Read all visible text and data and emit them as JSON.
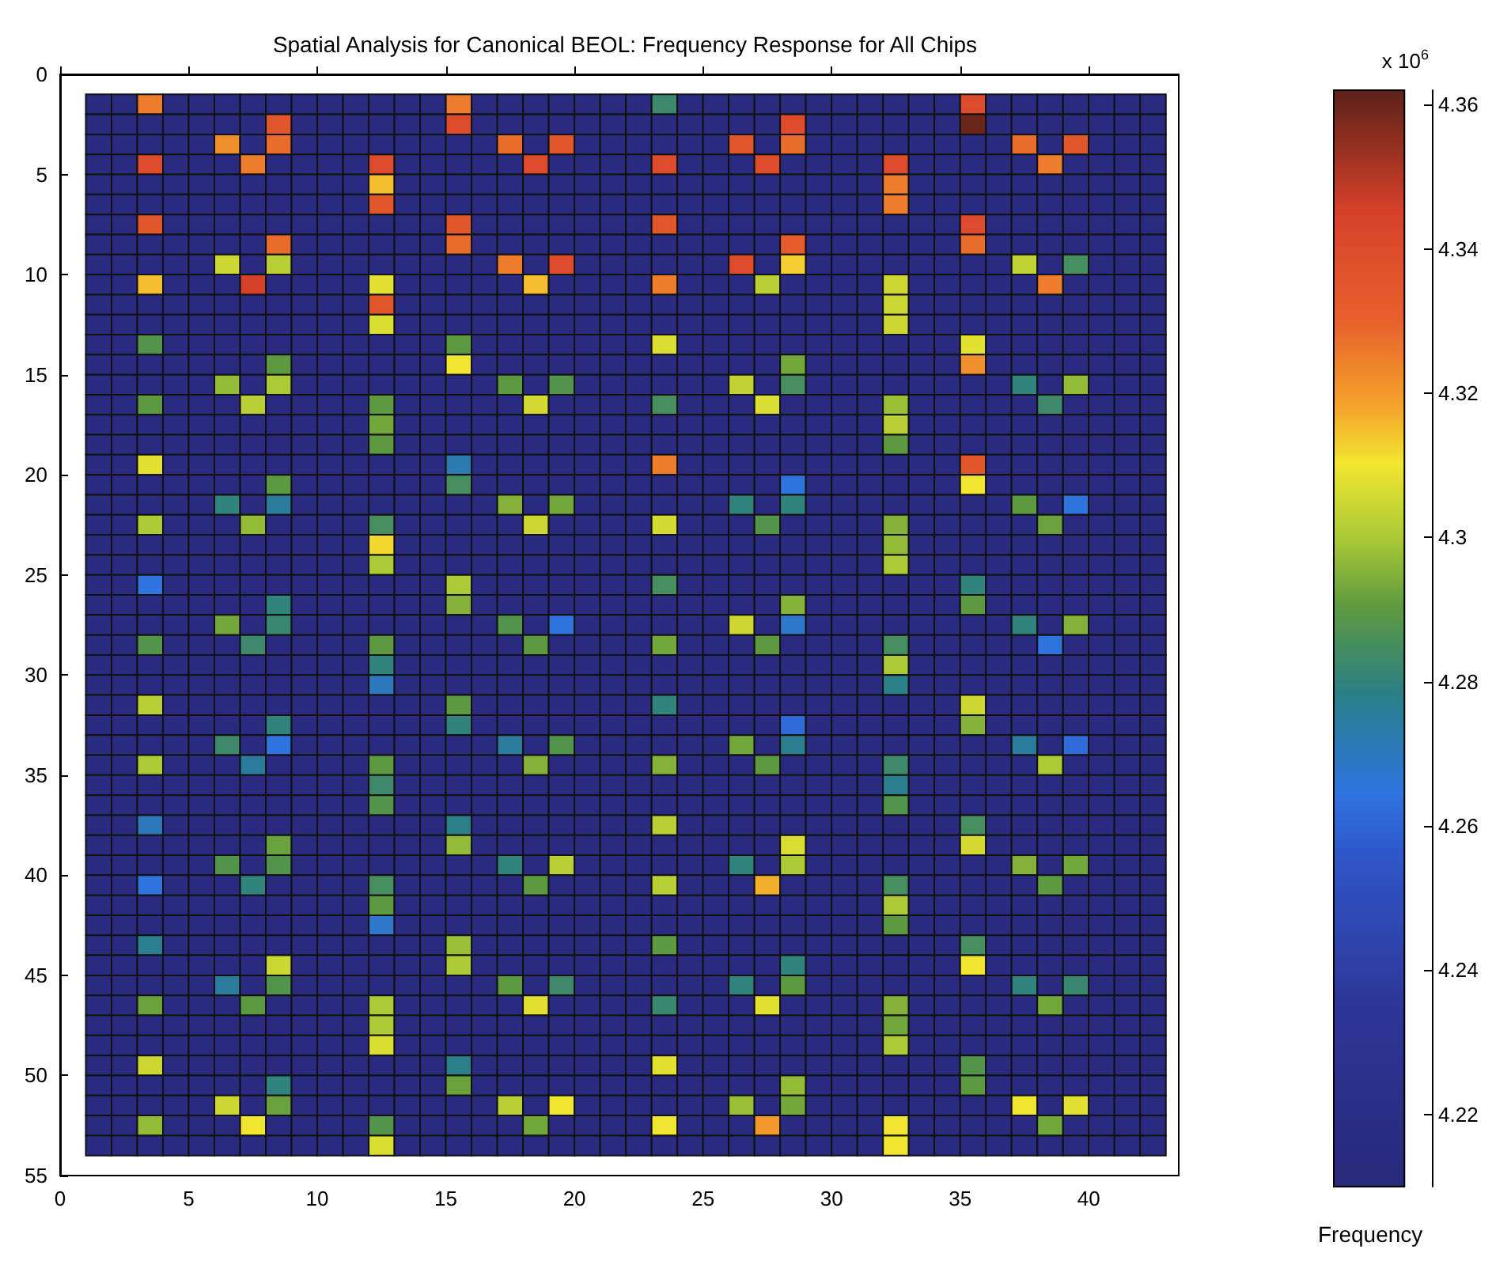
{
  "chart_data": {
    "type": "heatmap",
    "title": "Spatial Analysis for Canonical BEOL: Frequency Response for All Chips",
    "clabel": "Frequency",
    "annotations": [
      "x 10$^{6}$"
    ],
    "x": [
      1.5,
      2.5,
      3.5,
      4.5,
      5.5,
      6.5,
      7.5,
      8.5,
      9.5,
      10.5,
      11.5,
      12.5,
      13.5,
      14.5,
      15.5,
      16.5,
      17.5,
      18.5,
      19.5,
      20.5,
      21.5,
      22.5,
      23.5,
      24.5,
      25.5,
      26.5,
      27.5,
      28.5,
      29.5,
      30.5,
      31.5,
      32.5,
      33.5,
      34.5,
      35.5,
      36.5,
      37.5,
      38.5,
      39.5,
      40.5,
      41.5,
      42.5
    ],
    "y": [
      1.5,
      2.5,
      3.5,
      4.5,
      5.5,
      6.5,
      7.5,
      8.5,
      9.5,
      10.5,
      11.5,
      12.5,
      13.5,
      14.5,
      15.5,
      16.5,
      17.5,
      18.5,
      19.5,
      20.5,
      21.5,
      22.5,
      23.5,
      24.5,
      25.5,
      26.5,
      27.5,
      28.5,
      29.5,
      30.5,
      31.5,
      32.5,
      33.5,
      34.5,
      35.5,
      36.5,
      37.5,
      38.5,
      39.5,
      40.5,
      41.5,
      42.5,
      43.5,
      44.5,
      45.5,
      46.5,
      47.5,
      48.5,
      49.5,
      50.5,
      51.5,
      52.5,
      53.5
    ],
    "xlim": [
      0,
      43.5
    ],
    "xticks": [
      0,
      5,
      10,
      15,
      20,
      25,
      30,
      35,
      40
    ],
    "ylim": [
      55,
      0
    ],
    "yticks": [
      0,
      5,
      10,
      15,
      20,
      25,
      30,
      35,
      40,
      45,
      50,
      55
    ],
    "clim": [
      4.21,
      4.362
    ],
    "cticks": [
      4.22,
      4.24,
      4.26,
      4.28,
      4.3,
      4.32,
      4.34,
      4.36
    ],
    "cells": [
      [
        4.215,
        4.215,
        4.325,
        4.215,
        4.215,
        4.215,
        4.215,
        4.215,
        4.215,
        4.215,
        4.215,
        4.215,
        4.215,
        4.215,
        4.325,
        4.215,
        4.215,
        4.215,
        4.215,
        4.215,
        4.215,
        4.215,
        4.283,
        4.215,
        4.215,
        4.215,
        4.215,
        4.215,
        4.215,
        4.215,
        4.215,
        4.215,
        4.215,
        4.215,
        4.34,
        4.215,
        4.215,
        4.215,
        4.215,
        4.215,
        4.215,
        4.215
      ],
      [
        4.215,
        4.215,
        4.215,
        4.215,
        4.215,
        4.215,
        4.215,
        4.335,
        4.215,
        4.215,
        4.215,
        4.215,
        4.215,
        4.215,
        4.34,
        4.215,
        4.215,
        4.215,
        4.215,
        4.215,
        4.215,
        4.215,
        4.215,
        4.215,
        4.215,
        4.215,
        4.215,
        4.34,
        4.215,
        4.215,
        4.215,
        4.215,
        4.215,
        4.215,
        4.36,
        4.215,
        4.215,
        4.215,
        4.215,
        4.215,
        4.215,
        4.215
      ],
      [
        4.215,
        4.215,
        4.215,
        4.215,
        4.215,
        4.322,
        4.215,
        4.328,
        4.215,
        4.215,
        4.215,
        4.215,
        4.215,
        4.215,
        4.215,
        4.215,
        4.328,
        4.215,
        4.335,
        4.215,
        4.215,
        4.215,
        4.215,
        4.215,
        4.215,
        4.335,
        4.215,
        4.328,
        4.215,
        4.215,
        4.215,
        4.215,
        4.215,
        4.215,
        4.215,
        4.215,
        4.328,
        4.215,
        4.335,
        4.215,
        4.215,
        4.215
      ],
      [
        4.215,
        4.215,
        4.34,
        4.215,
        4.215,
        4.215,
        4.325,
        4.215,
        4.215,
        4.215,
        4.215,
        4.34,
        4.215,
        4.215,
        4.215,
        4.215,
        4.215,
        4.34,
        4.215,
        4.215,
        4.215,
        4.215,
        4.34,
        4.215,
        4.215,
        4.215,
        4.34,
        4.215,
        4.215,
        4.215,
        4.215,
        4.34,
        4.215,
        4.215,
        4.215,
        4.215,
        4.215,
        4.325,
        4.215,
        4.215,
        4.215,
        4.215
      ],
      [
        4.215,
        4.215,
        4.215,
        4.215,
        4.215,
        4.215,
        4.215,
        4.215,
        4.215,
        4.215,
        4.215,
        4.315,
        4.215,
        4.215,
        4.215,
        4.215,
        4.215,
        4.215,
        4.215,
        4.215,
        4.215,
        4.215,
        4.215,
        4.215,
        4.215,
        4.215,
        4.215,
        4.215,
        4.215,
        4.215,
        4.215,
        4.325,
        4.215,
        4.215,
        4.215,
        4.215,
        4.215,
        4.215,
        4.215,
        4.215,
        4.215,
        4.215
      ],
      [
        4.215,
        4.215,
        4.215,
        4.215,
        4.215,
        4.215,
        4.215,
        4.215,
        4.215,
        4.215,
        4.215,
        4.335,
        4.215,
        4.215,
        4.215,
        4.215,
        4.215,
        4.215,
        4.215,
        4.215,
        4.215,
        4.215,
        4.215,
        4.215,
        4.215,
        4.215,
        4.215,
        4.215,
        4.215,
        4.215,
        4.215,
        4.325,
        4.215,
        4.215,
        4.215,
        4.215,
        4.215,
        4.215,
        4.215,
        4.215,
        4.215,
        4.215
      ],
      [
        4.215,
        4.215,
        4.335,
        4.215,
        4.215,
        4.215,
        4.215,
        4.215,
        4.215,
        4.215,
        4.215,
        4.215,
        4.215,
        4.215,
        4.335,
        4.215,
        4.215,
        4.215,
        4.215,
        4.215,
        4.215,
        4.215,
        4.335,
        4.215,
        4.215,
        4.215,
        4.215,
        4.215,
        4.215,
        4.215,
        4.215,
        4.215,
        4.215,
        4.215,
        4.34,
        4.215,
        4.215,
        4.215,
        4.215,
        4.215,
        4.215,
        4.215
      ],
      [
        4.215,
        4.215,
        4.215,
        4.215,
        4.215,
        4.215,
        4.215,
        4.328,
        4.215,
        4.215,
        4.215,
        4.215,
        4.215,
        4.215,
        4.328,
        4.215,
        4.215,
        4.215,
        4.215,
        4.215,
        4.215,
        4.215,
        4.215,
        4.215,
        4.215,
        4.215,
        4.215,
        4.332,
        4.215,
        4.215,
        4.215,
        4.215,
        4.215,
        4.215,
        4.328,
        4.215,
        4.215,
        4.215,
        4.215,
        4.215,
        4.215,
        4.215
      ],
      [
        4.215,
        4.215,
        4.215,
        4.215,
        4.215,
        4.305,
        4.215,
        4.302,
        4.215,
        4.215,
        4.215,
        4.215,
        4.215,
        4.215,
        4.215,
        4.215,
        4.325,
        4.215,
        4.34,
        4.215,
        4.215,
        4.215,
        4.215,
        4.215,
        4.215,
        4.34,
        4.215,
        4.313,
        4.215,
        4.215,
        4.215,
        4.215,
        4.215,
        4.215,
        4.215,
        4.215,
        4.303,
        4.215,
        4.285,
        4.215,
        4.215,
        4.215
      ],
      [
        4.215,
        4.215,
        4.315,
        4.215,
        4.215,
        4.215,
        4.345,
        4.215,
        4.215,
        4.215,
        4.215,
        4.308,
        4.215,
        4.215,
        4.215,
        4.215,
        4.215,
        4.315,
        4.215,
        4.215,
        4.215,
        4.215,
        4.325,
        4.215,
        4.215,
        4.215,
        4.302,
        4.215,
        4.215,
        4.215,
        4.215,
        4.305,
        4.215,
        4.215,
        4.215,
        4.215,
        4.215,
        4.325,
        4.215,
        4.215,
        4.215,
        4.215
      ],
      [
        4.215,
        4.215,
        4.215,
        4.215,
        4.215,
        4.215,
        4.215,
        4.215,
        4.215,
        4.215,
        4.215,
        4.335,
        4.215,
        4.215,
        4.215,
        4.215,
        4.215,
        4.215,
        4.215,
        4.215,
        4.215,
        4.215,
        4.215,
        4.215,
        4.215,
        4.215,
        4.215,
        4.215,
        4.215,
        4.215,
        4.215,
        4.305,
        4.215,
        4.215,
        4.215,
        4.215,
        4.215,
        4.215,
        4.215,
        4.215,
        4.215,
        4.215
      ],
      [
        4.215,
        4.215,
        4.215,
        4.215,
        4.215,
        4.215,
        4.215,
        4.215,
        4.215,
        4.215,
        4.215,
        4.307,
        4.215,
        4.215,
        4.215,
        4.215,
        4.215,
        4.215,
        4.215,
        4.215,
        4.215,
        4.215,
        4.215,
        4.215,
        4.215,
        4.215,
        4.215,
        4.215,
        4.215,
        4.215,
        4.215,
        4.305,
        4.215,
        4.215,
        4.215,
        4.215,
        4.215,
        4.215,
        4.215,
        4.215,
        4.215,
        4.215
      ],
      [
        4.215,
        4.215,
        4.288,
        4.215,
        4.215,
        4.215,
        4.215,
        4.215,
        4.215,
        4.215,
        4.215,
        4.215,
        4.215,
        4.215,
        4.29,
        4.215,
        4.215,
        4.215,
        4.215,
        4.215,
        4.215,
        4.215,
        4.307,
        4.215,
        4.215,
        4.215,
        4.215,
        4.215,
        4.215,
        4.215,
        4.215,
        4.215,
        4.215,
        4.215,
        4.308,
        4.215,
        4.215,
        4.215,
        4.215,
        4.215,
        4.215,
        4.215
      ],
      [
        4.215,
        4.215,
        4.215,
        4.215,
        4.215,
        4.215,
        4.215,
        4.29,
        4.215,
        4.215,
        4.215,
        4.215,
        4.215,
        4.215,
        4.31,
        4.215,
        4.215,
        4.215,
        4.215,
        4.215,
        4.215,
        4.215,
        4.215,
        4.215,
        4.215,
        4.215,
        4.215,
        4.293,
        4.215,
        4.215,
        4.215,
        4.215,
        4.215,
        4.215,
        4.322,
        4.215,
        4.215,
        4.215,
        4.215,
        4.215,
        4.215,
        4.215
      ],
      [
        4.215,
        4.215,
        4.215,
        4.215,
        4.215,
        4.297,
        4.215,
        4.3,
        4.215,
        4.215,
        4.215,
        4.215,
        4.215,
        4.215,
        4.215,
        4.215,
        4.29,
        4.215,
        4.288,
        4.215,
        4.215,
        4.215,
        4.215,
        4.215,
        4.215,
        4.303,
        4.215,
        4.285,
        4.215,
        4.215,
        4.215,
        4.215,
        4.215,
        4.215,
        4.215,
        4.215,
        4.28,
        4.215,
        4.297,
        4.215,
        4.215,
        4.215
      ],
      [
        4.215,
        4.215,
        4.29,
        4.215,
        4.215,
        4.215,
        4.302,
        4.215,
        4.215,
        4.215,
        4.215,
        4.29,
        4.215,
        4.215,
        4.215,
        4.215,
        4.215,
        4.306,
        4.215,
        4.215,
        4.215,
        4.215,
        4.285,
        4.215,
        4.215,
        4.215,
        4.307,
        4.215,
        4.215,
        4.215,
        4.215,
        4.298,
        4.215,
        4.215,
        4.215,
        4.215,
        4.215,
        4.283,
        4.215,
        4.215,
        4.215,
        4.215
      ],
      [
        4.215,
        4.215,
        4.215,
        4.215,
        4.215,
        4.215,
        4.215,
        4.215,
        4.215,
        4.215,
        4.215,
        4.293,
        4.215,
        4.215,
        4.215,
        4.215,
        4.215,
        4.215,
        4.215,
        4.215,
        4.215,
        4.215,
        4.215,
        4.215,
        4.215,
        4.215,
        4.215,
        4.215,
        4.215,
        4.215,
        4.215,
        4.302,
        4.215,
        4.215,
        4.215,
        4.215,
        4.215,
        4.215,
        4.215,
        4.215,
        4.215,
        4.215
      ],
      [
        4.215,
        4.215,
        4.215,
        4.215,
        4.215,
        4.215,
        4.215,
        4.215,
        4.215,
        4.215,
        4.215,
        4.29,
        4.215,
        4.215,
        4.215,
        4.215,
        4.215,
        4.215,
        4.215,
        4.215,
        4.215,
        4.215,
        4.215,
        4.215,
        4.215,
        4.215,
        4.215,
        4.215,
        4.215,
        4.215,
        4.215,
        4.29,
        4.215,
        4.215,
        4.215,
        4.215,
        4.215,
        4.215,
        4.215,
        4.215,
        4.215,
        4.215
      ],
      [
        4.215,
        4.215,
        4.308,
        4.215,
        4.215,
        4.215,
        4.215,
        4.215,
        4.215,
        4.215,
        4.215,
        4.215,
        4.215,
        4.215,
        4.272,
        4.215,
        4.215,
        4.215,
        4.215,
        4.215,
        4.215,
        4.215,
        4.325,
        4.215,
        4.215,
        4.215,
        4.215,
        4.215,
        4.215,
        4.215,
        4.215,
        4.215,
        4.215,
        4.215,
        4.335,
        4.215,
        4.215,
        4.215,
        4.215,
        4.215,
        4.215,
        4.215
      ],
      [
        4.215,
        4.215,
        4.215,
        4.215,
        4.215,
        4.215,
        4.215,
        4.29,
        4.215,
        4.215,
        4.215,
        4.215,
        4.215,
        4.215,
        4.285,
        4.215,
        4.215,
        4.215,
        4.215,
        4.215,
        4.215,
        4.215,
        4.215,
        4.215,
        4.215,
        4.215,
        4.215,
        4.265,
        4.215,
        4.215,
        4.215,
        4.215,
        4.215,
        4.215,
        4.31,
        4.215,
        4.215,
        4.215,
        4.215,
        4.215,
        4.215,
        4.215
      ],
      [
        4.215,
        4.215,
        4.215,
        4.215,
        4.215,
        4.28,
        4.215,
        4.275,
        4.215,
        4.215,
        4.215,
        4.215,
        4.215,
        4.215,
        4.215,
        4.215,
        4.295,
        4.215,
        4.293,
        4.215,
        4.215,
        4.215,
        4.215,
        4.215,
        4.215,
        4.28,
        4.215,
        4.28,
        4.215,
        4.215,
        4.215,
        4.215,
        4.215,
        4.215,
        4.215,
        4.215,
        4.29,
        4.215,
        4.265,
        4.215,
        4.215,
        4.215
      ],
      [
        4.215,
        4.215,
        4.3,
        4.215,
        4.215,
        4.215,
        4.297,
        4.215,
        4.215,
        4.215,
        4.215,
        4.285,
        4.215,
        4.215,
        4.215,
        4.215,
        4.215,
        4.305,
        4.215,
        4.215,
        4.215,
        4.215,
        4.306,
        4.215,
        4.215,
        4.215,
        4.288,
        4.215,
        4.215,
        4.215,
        4.215,
        4.295,
        4.215,
        4.215,
        4.215,
        4.215,
        4.215,
        4.292,
        4.215,
        4.215,
        4.215,
        4.215
      ],
      [
        4.215,
        4.215,
        4.215,
        4.215,
        4.215,
        4.215,
        4.215,
        4.215,
        4.215,
        4.215,
        4.215,
        4.312,
        4.215,
        4.215,
        4.215,
        4.215,
        4.215,
        4.215,
        4.215,
        4.215,
        4.215,
        4.215,
        4.215,
        4.215,
        4.215,
        4.215,
        4.215,
        4.215,
        4.215,
        4.215,
        4.215,
        4.297,
        4.215,
        4.215,
        4.215,
        4.215,
        4.215,
        4.215,
        4.215,
        4.215,
        4.215,
        4.215
      ],
      [
        4.215,
        4.215,
        4.215,
        4.215,
        4.215,
        4.215,
        4.215,
        4.215,
        4.215,
        4.215,
        4.215,
        4.3,
        4.215,
        4.215,
        4.215,
        4.215,
        4.215,
        4.215,
        4.215,
        4.215,
        4.215,
        4.215,
        4.215,
        4.215,
        4.215,
        4.215,
        4.215,
        4.215,
        4.215,
        4.215,
        4.215,
        4.3,
        4.215,
        4.215,
        4.215,
        4.215,
        4.215,
        4.215,
        4.215,
        4.215,
        4.215,
        4.215
      ],
      [
        4.215,
        4.215,
        4.265,
        4.215,
        4.215,
        4.215,
        4.215,
        4.215,
        4.215,
        4.215,
        4.215,
        4.215,
        4.215,
        4.215,
        4.3,
        4.215,
        4.215,
        4.215,
        4.215,
        4.215,
        4.215,
        4.215,
        4.285,
        4.215,
        4.215,
        4.215,
        4.215,
        4.215,
        4.215,
        4.215,
        4.215,
        4.215,
        4.215,
        4.215,
        4.28,
        4.215,
        4.215,
        4.215,
        4.215,
        4.215,
        4.215,
        4.215
      ],
      [
        4.215,
        4.215,
        4.215,
        4.215,
        4.215,
        4.215,
        4.215,
        4.28,
        4.215,
        4.215,
        4.215,
        4.215,
        4.215,
        4.215,
        4.295,
        4.215,
        4.215,
        4.215,
        4.215,
        4.215,
        4.215,
        4.215,
        4.215,
        4.215,
        4.215,
        4.215,
        4.215,
        4.295,
        4.215,
        4.215,
        4.215,
        4.215,
        4.215,
        4.215,
        4.29,
        4.215,
        4.215,
        4.215,
        4.215,
        4.215,
        4.215,
        4.215
      ],
      [
        4.215,
        4.215,
        4.215,
        4.215,
        4.215,
        4.293,
        4.215,
        4.282,
        4.215,
        4.215,
        4.215,
        4.215,
        4.215,
        4.215,
        4.215,
        4.215,
        4.288,
        4.215,
        4.265,
        4.215,
        4.215,
        4.215,
        4.215,
        4.215,
        4.215,
        4.305,
        4.215,
        4.268,
        4.215,
        4.215,
        4.215,
        4.215,
        4.215,
        4.215,
        4.215,
        4.215,
        4.28,
        4.215,
        4.295,
        4.215,
        4.215,
        4.215
      ],
      [
        4.215,
        4.215,
        4.288,
        4.215,
        4.215,
        4.215,
        4.283,
        4.215,
        4.215,
        4.215,
        4.215,
        4.29,
        4.215,
        4.215,
        4.215,
        4.215,
        4.215,
        4.29,
        4.215,
        4.215,
        4.215,
        4.215,
        4.293,
        4.215,
        4.215,
        4.215,
        4.29,
        4.215,
        4.215,
        4.215,
        4.215,
        4.285,
        4.215,
        4.215,
        4.215,
        4.215,
        4.215,
        4.265,
        4.215,
        4.215,
        4.215,
        4.215
      ],
      [
        4.215,
        4.215,
        4.215,
        4.215,
        4.215,
        4.215,
        4.215,
        4.215,
        4.215,
        4.215,
        4.215,
        4.28,
        4.215,
        4.215,
        4.215,
        4.215,
        4.215,
        4.215,
        4.215,
        4.215,
        4.215,
        4.215,
        4.215,
        4.215,
        4.215,
        4.215,
        4.215,
        4.215,
        4.215,
        4.215,
        4.215,
        4.3,
        4.215,
        4.215,
        4.215,
        4.215,
        4.215,
        4.215,
        4.215,
        4.215,
        4.215,
        4.215
      ],
      [
        4.215,
        4.215,
        4.215,
        4.215,
        4.215,
        4.215,
        4.215,
        4.215,
        4.215,
        4.215,
        4.215,
        4.27,
        4.215,
        4.215,
        4.215,
        4.215,
        4.215,
        4.215,
        4.215,
        4.215,
        4.215,
        4.215,
        4.215,
        4.215,
        4.215,
        4.215,
        4.215,
        4.215,
        4.215,
        4.215,
        4.215,
        4.278,
        4.215,
        4.215,
        4.215,
        4.215,
        4.215,
        4.215,
        4.215,
        4.215,
        4.215,
        4.215
      ],
      [
        4.215,
        4.215,
        4.302,
        4.215,
        4.215,
        4.215,
        4.215,
        4.215,
        4.215,
        4.215,
        4.215,
        4.215,
        4.215,
        4.215,
        4.29,
        4.215,
        4.215,
        4.215,
        4.215,
        4.215,
        4.215,
        4.215,
        4.28,
        4.215,
        4.215,
        4.215,
        4.215,
        4.215,
        4.215,
        4.215,
        4.215,
        4.215,
        4.215,
        4.215,
        4.305,
        4.215,
        4.215,
        4.215,
        4.215,
        4.215,
        4.215,
        4.215
      ],
      [
        4.215,
        4.215,
        4.215,
        4.215,
        4.215,
        4.215,
        4.215,
        4.28,
        4.215,
        4.215,
        4.215,
        4.215,
        4.215,
        4.215,
        4.28,
        4.215,
        4.215,
        4.215,
        4.215,
        4.215,
        4.215,
        4.215,
        4.215,
        4.215,
        4.215,
        4.215,
        4.215,
        4.262,
        4.215,
        4.215,
        4.215,
        4.215,
        4.215,
        4.215,
        4.295,
        4.215,
        4.215,
        4.215,
        4.215,
        4.215,
        4.215,
        4.215
      ],
      [
        4.215,
        4.215,
        4.215,
        4.215,
        4.215,
        4.283,
        4.215,
        4.265,
        4.215,
        4.215,
        4.215,
        4.215,
        4.215,
        4.215,
        4.215,
        4.215,
        4.275,
        4.215,
        4.288,
        4.215,
        4.215,
        4.215,
        4.215,
        4.215,
        4.215,
        4.293,
        4.215,
        4.277,
        4.215,
        4.215,
        4.215,
        4.215,
        4.215,
        4.215,
        4.215,
        4.215,
        4.275,
        4.215,
        4.262,
        4.215,
        4.215,
        4.215
      ],
      [
        4.215,
        4.215,
        4.3,
        4.215,
        4.215,
        4.215,
        4.275,
        4.215,
        4.215,
        4.215,
        4.215,
        4.29,
        4.215,
        4.215,
        4.215,
        4.215,
        4.215,
        4.295,
        4.215,
        4.215,
        4.215,
        4.215,
        4.295,
        4.215,
        4.215,
        4.215,
        4.29,
        4.215,
        4.215,
        4.215,
        4.215,
        4.283,
        4.215,
        4.215,
        4.215,
        4.215,
        4.215,
        4.3,
        4.215,
        4.215,
        4.215,
        4.215
      ],
      [
        4.215,
        4.215,
        4.215,
        4.215,
        4.215,
        4.215,
        4.215,
        4.215,
        4.215,
        4.215,
        4.215,
        4.283,
        4.215,
        4.215,
        4.215,
        4.215,
        4.215,
        4.215,
        4.215,
        4.215,
        4.215,
        4.215,
        4.215,
        4.215,
        4.215,
        4.215,
        4.215,
        4.215,
        4.215,
        4.215,
        4.215,
        4.277,
        4.215,
        4.215,
        4.215,
        4.215,
        4.215,
        4.215,
        4.215,
        4.215,
        4.215,
        4.215
      ],
      [
        4.215,
        4.215,
        4.215,
        4.215,
        4.215,
        4.215,
        4.215,
        4.215,
        4.215,
        4.215,
        4.215,
        4.288,
        4.215,
        4.215,
        4.215,
        4.215,
        4.215,
        4.215,
        4.215,
        4.215,
        4.215,
        4.215,
        4.215,
        4.215,
        4.215,
        4.215,
        4.215,
        4.215,
        4.215,
        4.215,
        4.215,
        4.288,
        4.215,
        4.215,
        4.215,
        4.215,
        4.215,
        4.215,
        4.215,
        4.215,
        4.215,
        4.215
      ],
      [
        4.215,
        4.215,
        4.27,
        4.215,
        4.215,
        4.215,
        4.215,
        4.215,
        4.215,
        4.215,
        4.215,
        4.215,
        4.215,
        4.215,
        4.278,
        4.215,
        4.215,
        4.215,
        4.215,
        4.215,
        4.215,
        4.215,
        4.302,
        4.215,
        4.215,
        4.215,
        4.215,
        4.215,
        4.215,
        4.215,
        4.215,
        4.215,
        4.215,
        4.215,
        4.285,
        4.215,
        4.215,
        4.215,
        4.215,
        4.215,
        4.215,
        4.215
      ],
      [
        4.215,
        4.215,
        4.215,
        4.215,
        4.215,
        4.215,
        4.215,
        4.292,
        4.215,
        4.215,
        4.215,
        4.215,
        4.215,
        4.215,
        4.297,
        4.215,
        4.215,
        4.215,
        4.215,
        4.215,
        4.215,
        4.215,
        4.215,
        4.215,
        4.215,
        4.215,
        4.215,
        4.307,
        4.215,
        4.215,
        4.215,
        4.215,
        4.215,
        4.215,
        4.306,
        4.215,
        4.215,
        4.215,
        4.215,
        4.215,
        4.215,
        4.215
      ],
      [
        4.215,
        4.215,
        4.215,
        4.215,
        4.215,
        4.288,
        4.215,
        4.288,
        4.215,
        4.215,
        4.215,
        4.215,
        4.215,
        4.215,
        4.215,
        4.215,
        4.28,
        4.215,
        4.302,
        4.215,
        4.215,
        4.215,
        4.215,
        4.215,
        4.215,
        4.28,
        4.215,
        4.3,
        4.215,
        4.215,
        4.215,
        4.215,
        4.215,
        4.215,
        4.215,
        4.215,
        4.295,
        4.215,
        4.293,
        4.215,
        4.215,
        4.215
      ],
      [
        4.215,
        4.215,
        4.265,
        4.215,
        4.215,
        4.215,
        4.28,
        4.215,
        4.215,
        4.215,
        4.215,
        4.285,
        4.215,
        4.215,
        4.215,
        4.215,
        4.215,
        4.29,
        4.215,
        4.215,
        4.215,
        4.215,
        4.302,
        4.215,
        4.215,
        4.215,
        4.317,
        4.215,
        4.215,
        4.215,
        4.215,
        4.285,
        4.215,
        4.215,
        4.215,
        4.215,
        4.215,
        4.29,
        4.215,
        4.215,
        4.215,
        4.215
      ],
      [
        4.215,
        4.215,
        4.215,
        4.215,
        4.215,
        4.215,
        4.215,
        4.215,
        4.215,
        4.215,
        4.215,
        4.29,
        4.215,
        4.215,
        4.215,
        4.215,
        4.215,
        4.215,
        4.215,
        4.215,
        4.215,
        4.215,
        4.215,
        4.215,
        4.215,
        4.215,
        4.215,
        4.215,
        4.215,
        4.215,
        4.215,
        4.3,
        4.215,
        4.215,
        4.215,
        4.215,
        4.215,
        4.215,
        4.215,
        4.215,
        4.215,
        4.215
      ],
      [
        4.215,
        4.215,
        4.215,
        4.215,
        4.215,
        4.215,
        4.215,
        4.215,
        4.215,
        4.215,
        4.215,
        4.268,
        4.215,
        4.215,
        4.215,
        4.215,
        4.215,
        4.215,
        4.215,
        4.215,
        4.215,
        4.215,
        4.215,
        4.215,
        4.215,
        4.215,
        4.215,
        4.215,
        4.215,
        4.215,
        4.215,
        4.29,
        4.215,
        4.215,
        4.215,
        4.215,
        4.215,
        4.215,
        4.215,
        4.215,
        4.215,
        4.215
      ],
      [
        4.215,
        4.215,
        4.277,
        4.215,
        4.215,
        4.215,
        4.215,
        4.215,
        4.215,
        4.215,
        4.215,
        4.215,
        4.215,
        4.215,
        4.298,
        4.215,
        4.215,
        4.215,
        4.215,
        4.215,
        4.215,
        4.215,
        4.29,
        4.215,
        4.215,
        4.215,
        4.215,
        4.215,
        4.215,
        4.215,
        4.215,
        4.215,
        4.215,
        4.215,
        4.285,
        4.215,
        4.215,
        4.215,
        4.215,
        4.215,
        4.215,
        4.215
      ],
      [
        4.215,
        4.215,
        4.215,
        4.215,
        4.215,
        4.215,
        4.215,
        4.305,
        4.215,
        4.215,
        4.215,
        4.215,
        4.215,
        4.215,
        4.3,
        4.215,
        4.215,
        4.215,
        4.215,
        4.215,
        4.215,
        4.215,
        4.215,
        4.215,
        4.215,
        4.215,
        4.215,
        4.28,
        4.215,
        4.215,
        4.215,
        4.215,
        4.215,
        4.215,
        4.31,
        4.215,
        4.215,
        4.215,
        4.215,
        4.215,
        4.215,
        4.215
      ],
      [
        4.215,
        4.215,
        4.215,
        4.215,
        4.215,
        4.275,
        4.215,
        4.288,
        4.215,
        4.215,
        4.215,
        4.215,
        4.215,
        4.215,
        4.215,
        4.215,
        4.29,
        4.215,
        4.283,
        4.215,
        4.215,
        4.215,
        4.215,
        4.215,
        4.215,
        4.28,
        4.215,
        4.29,
        4.215,
        4.215,
        4.215,
        4.215,
        4.215,
        4.215,
        4.215,
        4.215,
        4.28,
        4.215,
        4.282,
        4.215,
        4.215,
        4.215
      ],
      [
        4.215,
        4.215,
        4.292,
        4.215,
        4.215,
        4.215,
        4.29,
        4.215,
        4.215,
        4.215,
        4.215,
        4.3,
        4.215,
        4.215,
        4.215,
        4.215,
        4.215,
        4.308,
        4.215,
        4.215,
        4.215,
        4.215,
        4.282,
        4.215,
        4.215,
        4.215,
        4.308,
        4.215,
        4.215,
        4.215,
        4.215,
        4.295,
        4.215,
        4.215,
        4.215,
        4.215,
        4.215,
        4.293,
        4.215,
        4.215,
        4.215,
        4.215
      ],
      [
        4.215,
        4.215,
        4.215,
        4.215,
        4.215,
        4.215,
        4.215,
        4.215,
        4.215,
        4.215,
        4.215,
        4.3,
        4.215,
        4.215,
        4.215,
        4.215,
        4.215,
        4.215,
        4.215,
        4.215,
        4.215,
        4.215,
        4.215,
        4.215,
        4.215,
        4.215,
        4.215,
        4.215,
        4.215,
        4.215,
        4.215,
        4.293,
        4.215,
        4.215,
        4.215,
        4.215,
        4.215,
        4.215,
        4.215,
        4.215,
        4.215,
        4.215
      ],
      [
        4.215,
        4.215,
        4.215,
        4.215,
        4.215,
        4.215,
        4.215,
        4.215,
        4.215,
        4.215,
        4.215,
        4.307,
        4.215,
        4.215,
        4.215,
        4.215,
        4.215,
        4.215,
        4.215,
        4.215,
        4.215,
        4.215,
        4.215,
        4.215,
        4.215,
        4.215,
        4.215,
        4.215,
        4.215,
        4.215,
        4.215,
        4.3,
        4.215,
        4.215,
        4.215,
        4.215,
        4.215,
        4.215,
        4.215,
        4.215,
        4.215,
        4.215
      ],
      [
        4.215,
        4.215,
        4.305,
        4.215,
        4.215,
        4.215,
        4.215,
        4.215,
        4.215,
        4.215,
        4.215,
        4.215,
        4.215,
        4.215,
        4.278,
        4.215,
        4.215,
        4.215,
        4.215,
        4.215,
        4.215,
        4.215,
        4.308,
        4.215,
        4.215,
        4.215,
        4.215,
        4.215,
        4.215,
        4.215,
        4.215,
        4.215,
        4.215,
        4.215,
        4.288,
        4.215,
        4.215,
        4.215,
        4.215,
        4.215,
        4.215,
        4.215
      ],
      [
        4.215,
        4.215,
        4.215,
        4.215,
        4.215,
        4.215,
        4.215,
        4.28,
        4.215,
        4.215,
        4.215,
        4.215,
        4.215,
        4.215,
        4.292,
        4.215,
        4.215,
        4.215,
        4.215,
        4.215,
        4.215,
        4.215,
        4.215,
        4.215,
        4.215,
        4.215,
        4.215,
        4.297,
        4.215,
        4.215,
        4.215,
        4.215,
        4.215,
        4.215,
        4.29,
        4.215,
        4.215,
        4.215,
        4.215,
        4.215,
        4.215,
        4.215
      ],
      [
        4.215,
        4.215,
        4.215,
        4.215,
        4.215,
        4.305,
        4.215,
        4.292,
        4.215,
        4.215,
        4.215,
        4.215,
        4.215,
        4.215,
        4.215,
        4.215,
        4.302,
        4.215,
        4.31,
        4.215,
        4.215,
        4.215,
        4.215,
        4.215,
        4.215,
        4.298,
        4.215,
        4.293,
        4.215,
        4.215,
        4.215,
        4.215,
        4.215,
        4.215,
        4.215,
        4.215,
        4.31,
        4.215,
        4.308,
        4.215,
        4.215,
        4.215
      ],
      [
        4.215,
        4.215,
        4.297,
        4.215,
        4.215,
        4.215,
        4.31,
        4.215,
        4.215,
        4.215,
        4.215,
        4.288,
        4.215,
        4.215,
        4.215,
        4.215,
        4.215,
        4.293,
        4.215,
        4.215,
        4.215,
        4.215,
        4.31,
        4.215,
        4.215,
        4.215,
        4.32,
        4.215,
        4.215,
        4.215,
        4.215,
        4.31,
        4.215,
        4.215,
        4.215,
        4.215,
        4.215,
        4.293,
        4.215,
        4.215,
        4.215,
        4.215
      ],
      [
        4.215,
        4.215,
        4.215,
        4.215,
        4.215,
        4.215,
        4.215,
        4.215,
        4.215,
        4.215,
        4.215,
        4.307,
        4.215,
        4.215,
        4.215,
        4.215,
        4.215,
        4.215,
        4.215,
        4.215,
        4.215,
        4.215,
        4.215,
        4.215,
        4.215,
        4.215,
        4.215,
        4.215,
        4.215,
        4.215,
        4.215,
        4.31,
        4.215,
        4.215,
        4.215,
        4.215,
        4.215,
        4.215,
        4.215,
        4.215,
        4.215,
        4.215
      ]
    ]
  }
}
